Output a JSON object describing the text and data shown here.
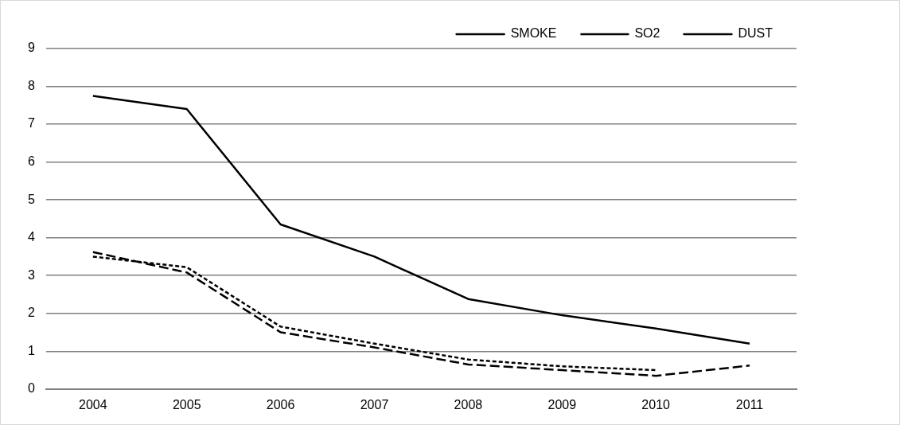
{
  "chart_data": {
    "type": "line",
    "categories": [
      "2004",
      "2005",
      "2006",
      "2007",
      "2008",
      "2009",
      "2010",
      "2011"
    ],
    "series": [
      {
        "name": "SMOKE",
        "color": "#000000",
        "line_style": "solid",
        "values": [
          7.75,
          7.4,
          4.35,
          3.5,
          2.38,
          1.95,
          1.6,
          1.2
        ]
      },
      {
        "name": "SO2",
        "color": "#000000",
        "line_style": "dotted",
        "values": [
          3.5,
          3.22,
          1.65,
          1.2,
          0.78,
          0.6,
          0.5,
          null
        ]
      },
      {
        "name": "DUST",
        "color": "#000000",
        "line_style": "dashed",
        "values": [
          3.62,
          3.08,
          1.5,
          1.1,
          0.65,
          0.5,
          0.35,
          0.62
        ]
      }
    ],
    "ylim": [
      0,
      9
    ],
    "yticks": [
      0,
      1,
      2,
      3,
      4,
      5,
      6,
      7,
      8,
      9
    ],
    "grid": "y",
    "legend": "top",
    "marker": "none"
  }
}
